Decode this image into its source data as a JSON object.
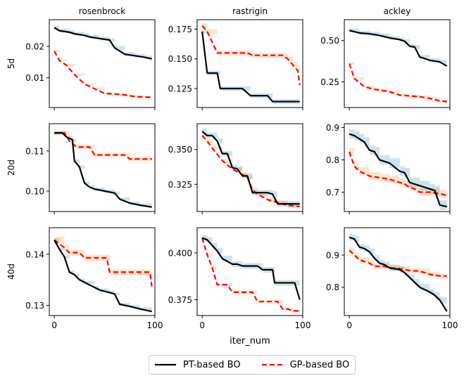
{
  "chart_data": {
    "type": "line",
    "xlabel": "iter_num",
    "columns": [
      "rosenbrock",
      "rastrigin",
      "ackley"
    ],
    "rows": [
      "5d",
      "20d",
      "40d"
    ],
    "xlim": [
      -5,
      100
    ],
    "xticks": [
      0,
      100
    ],
    "series_styles": [
      {
        "name": "PT-based BO",
        "color": "#000000",
        "dash": "solid",
        "band": "#1f77b4"
      },
      {
        "name": "GP-based BO",
        "color": "#ff0000",
        "dash": "dashed",
        "band": "#ff7f0e"
      }
    ],
    "panels": [
      {
        "row": "5d",
        "col": "rosenbrock",
        "ylim": [
          0.0005,
          0.0285
        ],
        "yticks": [
          0.01,
          0.02
        ],
        "ytick_labels": [
          "0.01",
          "0.02"
        ],
        "pt": [
          [
            0,
            0.026
          ],
          [
            5,
            0.025
          ],
          [
            15,
            0.0245
          ],
          [
            20,
            0.024
          ],
          [
            30,
            0.0235
          ],
          [
            35,
            0.023
          ],
          [
            45,
            0.0225
          ],
          [
            55,
            0.022
          ],
          [
            60,
            0.0195
          ],
          [
            70,
            0.0175
          ],
          [
            80,
            0.017
          ],
          [
            90,
            0.0165
          ],
          [
            97,
            0.016
          ]
        ],
        "gp": [
          [
            0,
            0.0185
          ],
          [
            5,
            0.0155
          ],
          [
            12,
            0.014
          ],
          [
            20,
            0.011
          ],
          [
            30,
            0.008
          ],
          [
            40,
            0.0065
          ],
          [
            50,
            0.005
          ],
          [
            60,
            0.0048
          ],
          [
            70,
            0.0045
          ],
          [
            80,
            0.004
          ],
          [
            90,
            0.0038
          ],
          [
            97,
            0.0038
          ]
        ],
        "pt_band": 0.0006,
        "gp_band": 0.0004
      },
      {
        "row": "5d",
        "col": "rastrigin",
        "ylim": [
          0.109,
          0.183
        ],
        "yticks": [
          0.125,
          0.15,
          0.175
        ],
        "ytick_labels": [
          "0.125",
          "0.150",
          "0.175"
        ],
        "pt": [
          [
            0,
            0.173
          ],
          [
            5,
            0.138
          ],
          [
            15,
            0.138
          ],
          [
            18,
            0.125
          ],
          [
            40,
            0.125
          ],
          [
            48,
            0.119
          ],
          [
            65,
            0.119
          ],
          [
            70,
            0.114
          ],
          [
            97,
            0.114
          ]
        ],
        "gp": [
          [
            0,
            0.178
          ],
          [
            5,
            0.173
          ],
          [
            15,
            0.155
          ],
          [
            45,
            0.155
          ],
          [
            50,
            0.153
          ],
          [
            80,
            0.153
          ],
          [
            85,
            0.15
          ],
          [
            90,
            0.145
          ],
          [
            95,
            0.14
          ],
          [
            97,
            0.128
          ]
        ],
        "pt_band": 0.002,
        "gp_band": 0.002
      },
      {
        "row": "5d",
        "col": "ackley",
        "ylim": [
          0.095,
          0.625
        ],
        "yticks": [
          0.25,
          0.5
        ],
        "ytick_labels": [
          "0.25",
          "0.50"
        ],
        "pt": [
          [
            0,
            0.56
          ],
          [
            10,
            0.545
          ],
          [
            20,
            0.54
          ],
          [
            30,
            0.53
          ],
          [
            40,
            0.515
          ],
          [
            50,
            0.505
          ],
          [
            55,
            0.495
          ],
          [
            60,
            0.465
          ],
          [
            65,
            0.46
          ],
          [
            70,
            0.4
          ],
          [
            80,
            0.38
          ],
          [
            90,
            0.37
          ],
          [
            97,
            0.345
          ]
        ],
        "gp": [
          [
            0,
            0.36
          ],
          [
            5,
            0.27
          ],
          [
            15,
            0.22
          ],
          [
            25,
            0.205
          ],
          [
            30,
            0.2
          ],
          [
            40,
            0.19
          ],
          [
            50,
            0.17
          ],
          [
            60,
            0.165
          ],
          [
            70,
            0.16
          ],
          [
            80,
            0.15
          ],
          [
            90,
            0.135
          ],
          [
            97,
            0.13
          ]
        ],
        "pt_band": 0.012,
        "gp_band": 0.008
      },
      {
        "row": "20d",
        "col": "rosenbrock",
        "ylim": [
          0.0949,
          0.1168
        ],
        "yticks": [
          0.1,
          0.11
        ],
        "ytick_labels": [
          "0.10",
          "0.11"
        ],
        "pt": [
          [
            0,
            0.1145
          ],
          [
            8,
            0.1145
          ],
          [
            12,
            0.1135
          ],
          [
            18,
            0.1128
          ],
          [
            20,
            0.1075
          ],
          [
            25,
            0.106
          ],
          [
            30,
            0.102
          ],
          [
            35,
            0.101
          ],
          [
            40,
            0.1005
          ],
          [
            50,
            0.1
          ],
          [
            60,
            0.0995
          ],
          [
            65,
            0.098
          ],
          [
            75,
            0.097
          ],
          [
            85,
            0.0965
          ],
          [
            97,
            0.096
          ]
        ],
        "gp": [
          [
            0,
            0.1145
          ],
          [
            10,
            0.1145
          ],
          [
            15,
            0.1125
          ],
          [
            22,
            0.111
          ],
          [
            35,
            0.111
          ],
          [
            40,
            0.109
          ],
          [
            70,
            0.109
          ],
          [
            75,
            0.108
          ],
          [
            97,
            0.108
          ]
        ],
        "pt_band": 0.0004,
        "gp_band": 0.0005
      },
      {
        "row": "20d",
        "col": "rastrigin",
        "ylim": [
          0.3055,
          0.3685
        ],
        "yticks": [
          0.325,
          0.35
        ],
        "ytick_labels": [
          "0.325",
          "0.350"
        ],
        "pt": [
          [
            0,
            0.363
          ],
          [
            5,
            0.36
          ],
          [
            10,
            0.36
          ],
          [
            15,
            0.356
          ],
          [
            20,
            0.347
          ],
          [
            25,
            0.347
          ],
          [
            30,
            0.337
          ],
          [
            35,
            0.336
          ],
          [
            40,
            0.331
          ],
          [
            45,
            0.331
          ],
          [
            50,
            0.319
          ],
          [
            65,
            0.319
          ],
          [
            70,
            0.318
          ],
          [
            75,
            0.311
          ],
          [
            97,
            0.311
          ]
        ],
        "gp": [
          [
            0,
            0.36
          ],
          [
            5,
            0.356
          ],
          [
            10,
            0.351
          ],
          [
            20,
            0.342
          ],
          [
            30,
            0.336
          ],
          [
            40,
            0.332
          ],
          [
            45,
            0.33
          ],
          [
            50,
            0.321
          ],
          [
            55,
            0.318
          ],
          [
            65,
            0.314
          ],
          [
            75,
            0.312
          ],
          [
            85,
            0.31
          ],
          [
            97,
            0.309
          ]
        ],
        "pt_band": 0.002,
        "gp_band": 0.0015
      },
      {
        "row": "20d",
        "col": "ackley",
        "ylim": [
          0.64,
          0.912
        ],
        "yticks": [
          0.7,
          0.8,
          0.9
        ],
        "ytick_labels": [
          "0.7",
          "0.8",
          "0.9"
        ],
        "pt": [
          [
            0,
            0.88
          ],
          [
            5,
            0.875
          ],
          [
            10,
            0.865
          ],
          [
            15,
            0.855
          ],
          [
            20,
            0.83
          ],
          [
            25,
            0.825
          ],
          [
            30,
            0.8
          ],
          [
            40,
            0.79
          ],
          [
            50,
            0.765
          ],
          [
            55,
            0.76
          ],
          [
            60,
            0.73
          ],
          [
            70,
            0.72
          ],
          [
            80,
            0.71
          ],
          [
            85,
            0.705
          ],
          [
            90,
            0.66
          ],
          [
            97,
            0.655
          ]
        ],
        "gp": [
          [
            0,
            0.825
          ],
          [
            5,
            0.78
          ],
          [
            10,
            0.765
          ],
          [
            20,
            0.75
          ],
          [
            30,
            0.745
          ],
          [
            40,
            0.74
          ],
          [
            50,
            0.73
          ],
          [
            55,
            0.725
          ],
          [
            60,
            0.715
          ],
          [
            65,
            0.71
          ],
          [
            70,
            0.7
          ],
          [
            80,
            0.7
          ],
          [
            90,
            0.695
          ],
          [
            97,
            0.69
          ]
        ],
        "pt_band": 0.015,
        "gp_band": 0.012
      },
      {
        "row": "40d",
        "col": "rosenbrock",
        "ylim": [
          0.128,
          0.1452
        ],
        "yticks": [
          0.13,
          0.14
        ],
        "ytick_labels": [
          "0.13",
          "0.14"
        ],
        "pt": [
          [
            0,
            0.1428
          ],
          [
            5,
            0.141
          ],
          [
            10,
            0.1395
          ],
          [
            15,
            0.1365
          ],
          [
            20,
            0.136
          ],
          [
            25,
            0.135
          ],
          [
            30,
            0.1345
          ],
          [
            40,
            0.1335
          ],
          [
            45,
            0.133
          ],
          [
            55,
            0.1325
          ],
          [
            60,
            0.1322
          ],
          [
            65,
            0.1302
          ],
          [
            75,
            0.1298
          ],
          [
            85,
            0.1293
          ],
          [
            97,
            0.1288
          ]
        ],
        "gp": [
          [
            0,
            0.1428
          ],
          [
            10,
            0.1413
          ],
          [
            15,
            0.1403
          ],
          [
            25,
            0.1403
          ],
          [
            30,
            0.1393
          ],
          [
            52,
            0.1393
          ],
          [
            55,
            0.1365
          ],
          [
            65,
            0.1365
          ],
          [
            95,
            0.1365
          ],
          [
            97,
            0.1337
          ]
        ],
        "pt_band": 0.0003,
        "gp_band": 0.0006
      },
      {
        "row": "40d",
        "col": "rastrigin",
        "ylim": [
          0.3665,
          0.4135
        ],
        "yticks": [
          0.375,
          0.4
        ],
        "ytick_labels": [
          "0.375",
          "0.400"
        ],
        "pt": [
          [
            0,
            0.408
          ],
          [
            5,
            0.407
          ],
          [
            10,
            0.404
          ],
          [
            15,
            0.401
          ],
          [
            20,
            0.397
          ],
          [
            30,
            0.394
          ],
          [
            35,
            0.394
          ],
          [
            40,
            0.393
          ],
          [
            55,
            0.393
          ],
          [
            60,
            0.391
          ],
          [
            70,
            0.391
          ],
          [
            72,
            0.384
          ],
          [
            92,
            0.384
          ],
          [
            97,
            0.375
          ]
        ],
        "gp": [
          [
            0,
            0.408
          ],
          [
            5,
            0.399
          ],
          [
            10,
            0.392
          ],
          [
            15,
            0.383
          ],
          [
            25,
            0.383
          ],
          [
            30,
            0.379
          ],
          [
            50,
            0.379
          ],
          [
            55,
            0.374
          ],
          [
            75,
            0.374
          ],
          [
            80,
            0.37
          ],
          [
            85,
            0.37
          ],
          [
            90,
            0.369
          ],
          [
            97,
            0.369
          ]
        ],
        "pt_band": 0.0015,
        "gp_band": 0.0008
      },
      {
        "row": "40d",
        "col": "ackley",
        "ylim": [
          0.712,
          0.985
        ],
        "yticks": [
          0.8,
          0.9
        ],
        "ytick_labels": [
          "0.8",
          "0.9"
        ],
        "pt": [
          [
            0,
            0.955
          ],
          [
            5,
            0.95
          ],
          [
            10,
            0.925
          ],
          [
            15,
            0.92
          ],
          [
            20,
            0.91
          ],
          [
            25,
            0.89
          ],
          [
            30,
            0.875
          ],
          [
            35,
            0.87
          ],
          [
            40,
            0.86
          ],
          [
            50,
            0.855
          ],
          [
            55,
            0.845
          ],
          [
            60,
            0.83
          ],
          [
            65,
            0.815
          ],
          [
            70,
            0.8
          ],
          [
            80,
            0.785
          ],
          [
            85,
            0.775
          ],
          [
            90,
            0.76
          ],
          [
            97,
            0.725
          ]
        ],
        "gp": [
          [
            0,
            0.915
          ],
          [
            5,
            0.9
          ],
          [
            10,
            0.885
          ],
          [
            20,
            0.875
          ],
          [
            25,
            0.865
          ],
          [
            35,
            0.865
          ],
          [
            40,
            0.86
          ],
          [
            50,
            0.858
          ],
          [
            60,
            0.852
          ],
          [
            70,
            0.85
          ],
          [
            80,
            0.84
          ],
          [
            90,
            0.835
          ],
          [
            97,
            0.835
          ]
        ],
        "pt_band": 0.01,
        "gp_band": 0.008
      }
    ]
  }
}
